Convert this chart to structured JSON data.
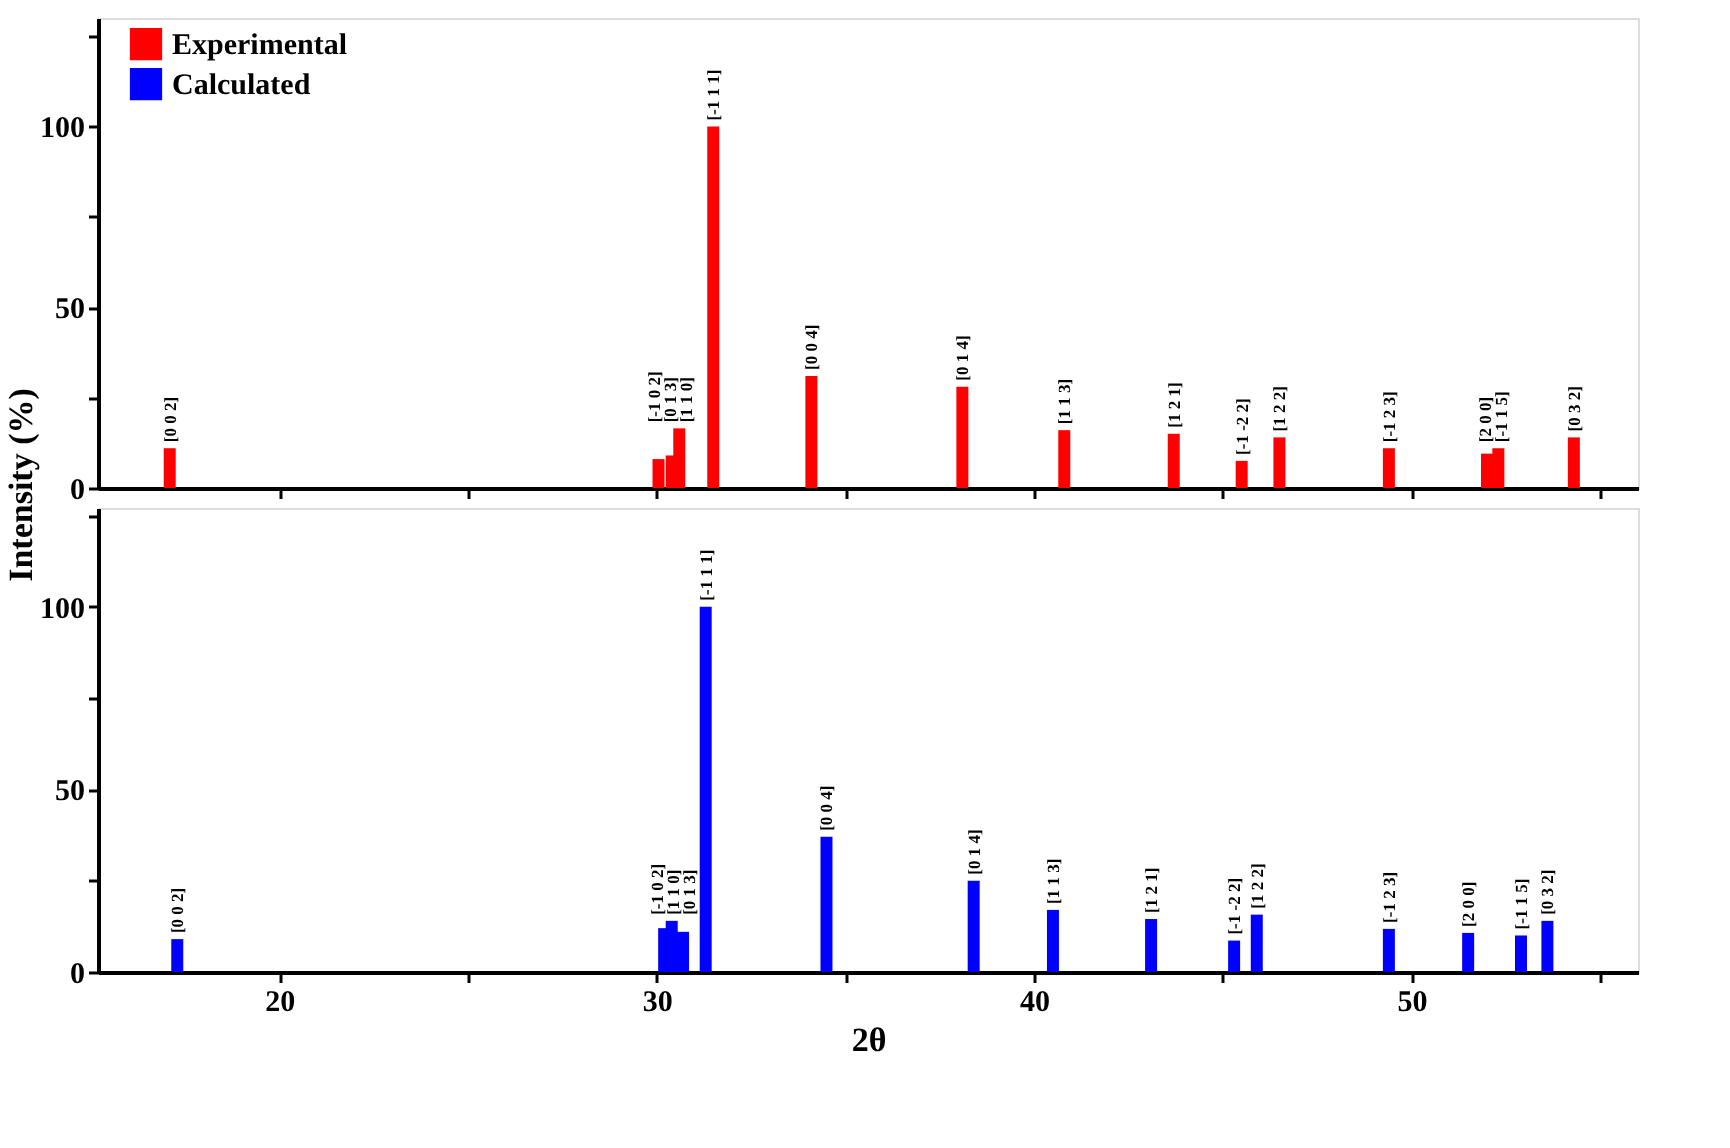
{
  "chart_data": [
    {
      "type": "bar",
      "ylabel": "Intensity (%)",
      "xlim": [
        15.2,
        56
      ],
      "ylim": [
        0,
        130
      ],
      "xticks": [
        20,
        {
          "value": 25,
          "label": null
        },
        30,
        {
          "value": 35,
          "label": null
        },
        40,
        {
          "value": 45,
          "label": null
        },
        50,
        {
          "value": 55,
          "label": null
        }
      ],
      "yticks": [
        0,
        {
          "value": 25,
          "label": null
        },
        50,
        {
          "value": 75,
          "label": null
        },
        100,
        {
          "value": 125,
          "label": null
        }
      ],
      "tick_labels": "y",
      "legend": "top left",
      "x": [
        17.1,
        30.05,
        30.4,
        30.6,
        31.5,
        34.1,
        38.1,
        40.8,
        43.7,
        45.5,
        46.5,
        49.4,
        52.0,
        52.3,
        54.3
      ],
      "series": [
        {
          "name": "Experimental",
          "color": "#ff0000",
          "values": [
            11,
            8,
            9,
            16.5,
            100,
            31,
            28,
            16,
            15,
            7.5,
            14,
            11,
            9.5,
            11,
            14
          ],
          "value_labels": [
            "[0 0 2]",
            "[-1 0 2]",
            "[0 1 3]",
            "[1 1 0]",
            "[-1 1 1]",
            "[0 0 4]",
            "[0 1 4]",
            "[1 1 3]",
            "[1 2 1]",
            "[-1 -2 2]",
            "[1 2 2]",
            "[-1 2 3]",
            "[2 0 0]",
            "[-1 1 5]",
            "[0 3 2]"
          ]
        }
      ]
    },
    {
      "type": "bar",
      "xlabel": "2θ",
      "xlim": [
        15.2,
        56
      ],
      "ylim": [
        0,
        127
      ],
      "xticks": [
        20,
        {
          "value": 25,
          "label": null
        },
        30,
        {
          "value": 35,
          "label": null
        },
        40,
        {
          "value": 45,
          "label": null
        },
        50,
        {
          "value": 55,
          "label": null
        }
      ],
      "yticks": [
        0,
        {
          "value": 25,
          "label": null
        },
        50,
        {
          "value": 75,
          "label": null
        },
        100,
        {
          "value": 125,
          "label": null
        }
      ],
      "x": [
        17.3,
        30.2,
        30.4,
        30.7,
        31.3,
        34.5,
        38.4,
        40.5,
        43.1,
        45.3,
        45.9,
        49.4,
        51.5,
        52.9,
        53.6
      ],
      "series": [
        {
          "name": "Calculated",
          "color": "#0000ff",
          "values": [
            9,
            12,
            14,
            11,
            100,
            37,
            25,
            17,
            14.5,
            8.6,
            15.7,
            11.8,
            10.7,
            10,
            14
          ],
          "value_labels": [
            "[0 0 2]",
            "[-1 0 2]",
            "[1 1 0]",
            "[0 1 3]",
            "[-1 1 1]",
            "[0 0 4]",
            "[0 1 4]",
            "[1 1 3]",
            "[1 2 1]",
            "[-1 -2 2]",
            "[1 2 2]",
            "[-1 2 3]",
            "[2 0 0]",
            "[-1 1 5]",
            "[0 3 2]"
          ]
        }
      ]
    }
  ]
}
